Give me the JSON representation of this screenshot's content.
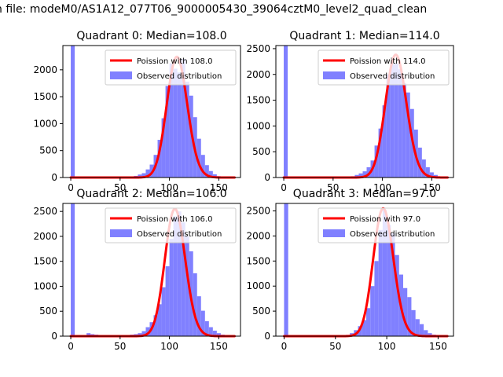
{
  "suptitle": "n file: modeM0/AS1A12_077T06_9000005430_39064cztM0_level2_quad_clean",
  "colors": {
    "hist_fill": "#8080ff",
    "hist_spike": "#7f7fff",
    "poisson_line": "#ff0000",
    "axes": "#000000",
    "legend_border": "#cccccc"
  },
  "chart_data": [
    {
      "type": "bar",
      "title": "Quadrant 0: Median=108.0",
      "legend": {
        "placement": "upper right",
        "entries": [
          "Poission with 108.0",
          "Observed distribution"
        ]
      },
      "xlim": [
        -8,
        172
      ],
      "ylim": [
        0,
        2450
      ],
      "xticks": [
        0,
        50,
        100,
        150
      ],
      "yticks": [
        0,
        500,
        1000,
        1500,
        2000
      ],
      "poisson_mean": 108,
      "poisson_scale": 2240,
      "bin_width": 4,
      "bins_start": [
        0,
        52,
        56,
        60,
        64,
        68,
        72,
        76,
        80,
        84,
        88,
        92,
        96,
        100,
        104,
        108,
        112,
        116,
        120,
        124,
        128,
        132,
        136,
        140,
        144,
        148,
        152,
        156,
        160
      ],
      "counts": [
        2450,
        5,
        8,
        15,
        30,
        55,
        80,
        150,
        240,
        420,
        700,
        1100,
        1700,
        2120,
        2020,
        1950,
        2200,
        1780,
        1520,
        1120,
        720,
        420,
        230,
        120,
        60,
        25,
        10,
        5,
        2
      ],
      "grid": false
    },
    {
      "type": "bar",
      "title": "Quadrant 1: Median=114.0",
      "legend": {
        "placement": "upper right",
        "entries": [
          "Poission with 114.0",
          "Observed distribution"
        ]
      },
      "xlim": [
        -8,
        172
      ],
      "ylim": [
        0,
        2560
      ],
      "xticks": [
        0,
        50,
        100,
        150
      ],
      "yticks": [
        0,
        500,
        1000,
        1500,
        2000,
        2500
      ],
      "poisson_mean": 114,
      "poisson_scale": 2380,
      "bin_width": 4,
      "bins_start": [
        0,
        60,
        64,
        68,
        72,
        76,
        80,
        84,
        88,
        92,
        96,
        100,
        104,
        108,
        112,
        116,
        120,
        124,
        128,
        132,
        136,
        140,
        144,
        148,
        152,
        156,
        160
      ],
      "counts": [
        2560,
        5,
        12,
        25,
        50,
        80,
        120,
        200,
        330,
        620,
        950,
        1400,
        2000,
        2200,
        2210,
        2100,
        1830,
        1650,
        1330,
        930,
        580,
        350,
        200,
        100,
        50,
        20,
        8
      ],
      "grid": false
    },
    {
      "type": "bar",
      "title": "Quadrant 2: Median=106.0",
      "legend": {
        "placement": "upper right",
        "entries": [
          "Poission with 106.0",
          "Observed distribution"
        ]
      },
      "xlim": [
        -8,
        172
      ],
      "ylim": [
        0,
        2660
      ],
      "xticks": [
        0,
        50,
        100,
        150
      ],
      "yticks": [
        0,
        500,
        1000,
        1500,
        2000,
        2500
      ],
      "poisson_mean": 106,
      "poisson_scale": 2550,
      "bin_width": 4,
      "bins_start": [
        0,
        16,
        20,
        24,
        28,
        32,
        36,
        40,
        44,
        48,
        52,
        56,
        60,
        64,
        68,
        72,
        76,
        80,
        84,
        88,
        92,
        96,
        100,
        104,
        108,
        112,
        116,
        120,
        124,
        128,
        132,
        136,
        140,
        144,
        148,
        152,
        156,
        160
      ],
      "counts": [
        2660,
        60,
        40,
        30,
        20,
        20,
        20,
        20,
        20,
        20,
        20,
        20,
        30,
        40,
        60,
        100,
        180,
        280,
        420,
        640,
        980,
        1400,
        1950,
        2400,
        2500,
        2280,
        2000,
        1700,
        1260,
        800,
        510,
        300,
        180,
        110,
        60,
        30,
        15,
        5
      ],
      "grid": false
    },
    {
      "type": "bar",
      "title": "Quadrant 3: Median=97.0",
      "legend": {
        "placement": "upper right",
        "entries": [
          "Poission with 97.0",
          "Observed distribution"
        ]
      },
      "xlim": [
        -8,
        165
      ],
      "ylim": [
        0,
        2650
      ],
      "xticks": [
        0,
        50,
        100,
        150
      ],
      "yticks": [
        0,
        500,
        1000,
        1500,
        2000,
        2500
      ],
      "poisson_mean": 97,
      "poisson_scale": 2550,
      "bin_width": 4,
      "bins_start": [
        0,
        56,
        60,
        64,
        68,
        72,
        76,
        80,
        84,
        88,
        92,
        96,
        100,
        104,
        108,
        112,
        116,
        120,
        124,
        128,
        132,
        136,
        140,
        144,
        148,
        152
      ],
      "counts": [
        2650,
        10,
        25,
        60,
        120,
        200,
        320,
        560,
        1000,
        1500,
        2120,
        2520,
        2220,
        2050,
        1620,
        1230,
        960,
        780,
        520,
        340,
        240,
        120,
        60,
        30,
        15,
        5
      ],
      "grid": false
    }
  ]
}
